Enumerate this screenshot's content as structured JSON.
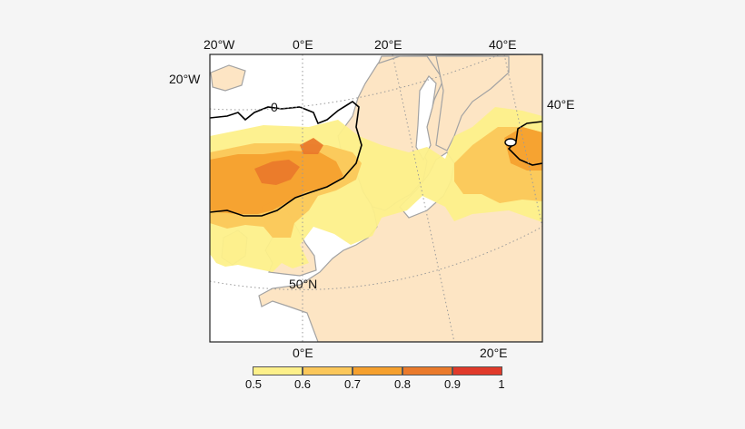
{
  "top_axis": [
    "20°W",
    "0°E",
    "20°E",
    "40°E"
  ],
  "left_label": "20°W",
  "right_label": "40°E",
  "bottom_axis": [
    "0°E",
    "20°E"
  ],
  "lat_label": "50°N",
  "contour_label": "0",
  "colorbar": {
    "ticks": [
      "0.5",
      "0.6",
      "0.7",
      "0.8",
      "0.9",
      "1"
    ],
    "colors": [
      "#fdf08a",
      "#fbc75a",
      "#f5a02e",
      "#ea7a2b",
      "#e03a2a"
    ]
  },
  "colors": {
    "background": "#f5f5f5",
    "land": "#fde5c4",
    "sea": "#ffffff",
    "coast": "#a3a3a3",
    "graticule": "#9a9a9a",
    "contour": "#000000"
  }
}
